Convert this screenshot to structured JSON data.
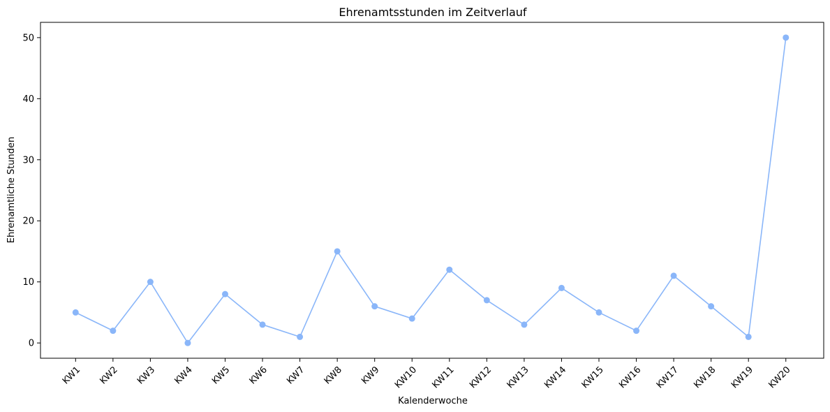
{
  "chart_data": {
    "type": "line",
    "title": "Ehrenamtsstunden im Zeitverlauf",
    "xlabel": "Kalenderwoche",
    "ylabel": "Ehrenamtliche Stunden",
    "categories": [
      "KW1",
      "KW2",
      "KW3",
      "KW4",
      "KW5",
      "KW6",
      "KW7",
      "KW8",
      "KW9",
      "KW10",
      "KW11",
      "KW12",
      "KW13",
      "KW14",
      "KW15",
      "KW16",
      "KW17",
      "KW18",
      "KW19",
      "KW20"
    ],
    "series": [
      {
        "values": [
          5,
          2,
          10,
          0,
          8,
          3,
          1,
          15,
          6,
          4,
          12,
          7,
          3,
          9,
          5,
          2,
          11,
          6,
          1,
          50
        ],
        "color": "#8ab6f9"
      }
    ],
    "ylim": [
      -2.5,
      52.5
    ],
    "yticks": [
      0,
      10,
      20,
      30,
      40,
      50
    ],
    "grid": false,
    "legend": "none",
    "marker": "circle"
  }
}
